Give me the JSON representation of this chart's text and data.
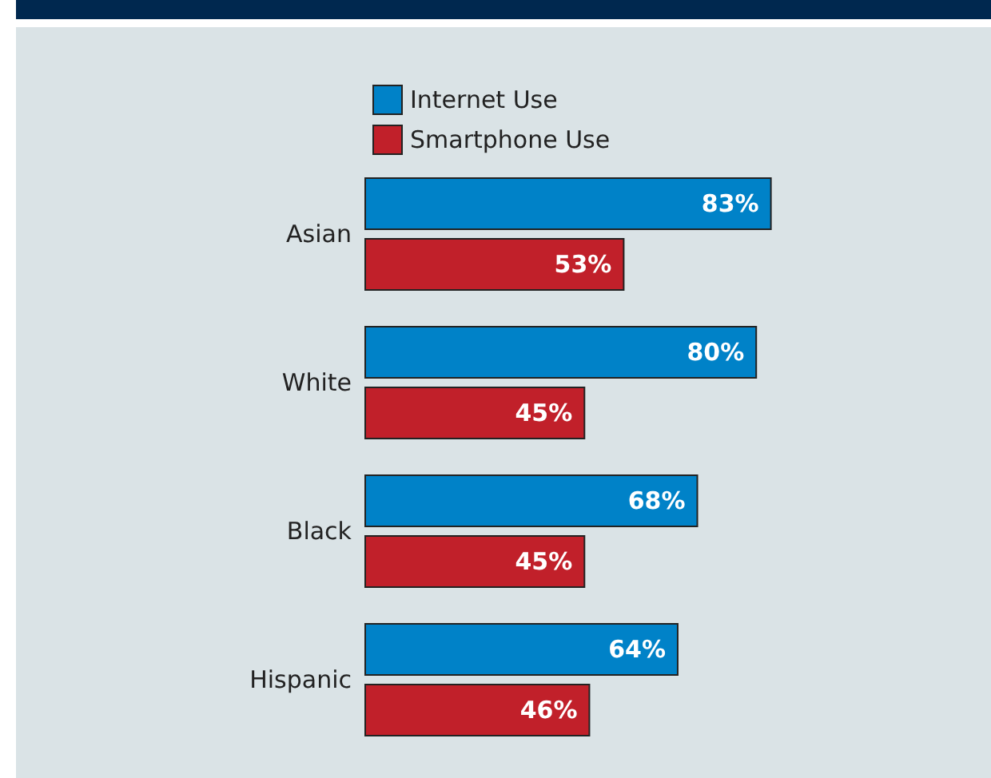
{
  "chart_data": {
    "type": "bar",
    "orientation": "horizontal",
    "categories": [
      "Asian",
      "White",
      "Black",
      "Hispanic"
    ],
    "series": [
      {
        "name": "Internet Use",
        "color": "#0082c8",
        "values": [
          83,
          80,
          68,
          64
        ],
        "value_labels": [
          "83%",
          "80%",
          "68%",
          "64%"
        ]
      },
      {
        "name": "Smartphone Use",
        "color": "#c1202a",
        "values": [
          53,
          45,
          45,
          46
        ],
        "value_labels": [
          "53%",
          "45%",
          "45%",
          "46%"
        ]
      }
    ],
    "legend": "top left"
  }
}
